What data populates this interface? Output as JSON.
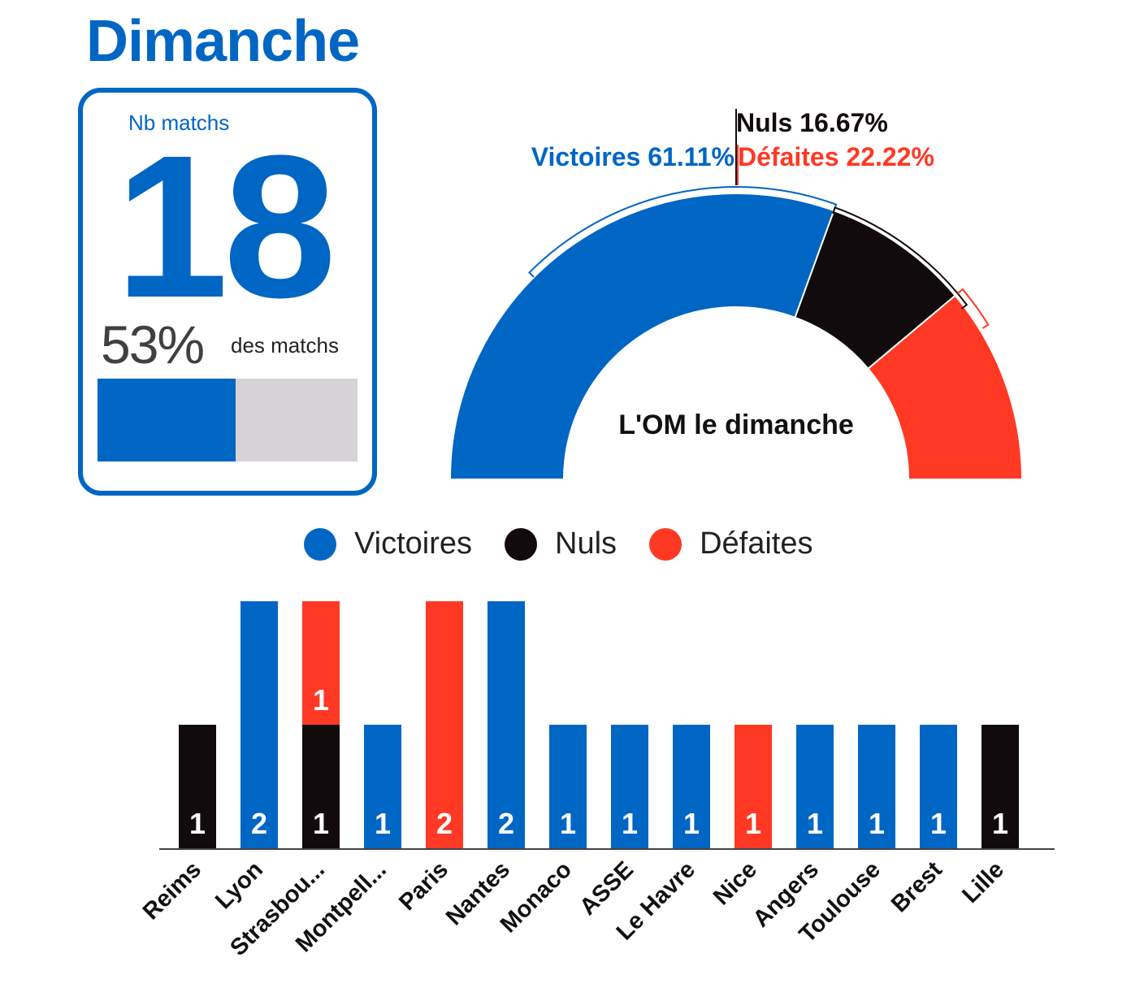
{
  "title": "Dimanche",
  "card": {
    "label": "Nb matchs",
    "number": "18",
    "pct_text": "53%",
    "pct_label": "des matchs",
    "pct_value": 0.53
  },
  "colors": {
    "brand": "#0066c4",
    "victoires": "#0066c4",
    "nuls": "#110b0d",
    "defaites": "#ff3924",
    "track": "#d5d3d6"
  },
  "chart_data": [
    {
      "type": "pie",
      "variant": "half-donut",
      "center_label": "L'OM le dimanche",
      "slices": [
        {
          "name": "Victoires",
          "value": 61.11,
          "label": "Victoires 61.11%"
        },
        {
          "name": "Nuls",
          "value": 16.67,
          "label": "Nuls 16.67%"
        },
        {
          "name": "Défaites",
          "value": 22.22,
          "label": "Défaites 22.22%"
        }
      ]
    },
    {
      "type": "bar",
      "stacked": true,
      "legend": [
        "Victoires",
        "Nuls",
        "Défaites"
      ],
      "legend_position": "top",
      "categories": [
        "Reims",
        "Lyon",
        "Strasbou...",
        "Montpell...",
        "Paris",
        "Nantes",
        "Monaco",
        "ASSE",
        "Le Havre",
        "Nice",
        "Angers",
        "Toulouse",
        "Brest",
        "Lille"
      ],
      "series": [
        {
          "name": "Victoires",
          "values": [
            0,
            2,
            0,
            1,
            0,
            2,
            1,
            1,
            1,
            0,
            1,
            1,
            1,
            0
          ]
        },
        {
          "name": "Nuls",
          "values": [
            1,
            0,
            1,
            0,
            0,
            0,
            0,
            0,
            0,
            0,
            0,
            0,
            0,
            1
          ]
        },
        {
          "name": "Défaites",
          "values": [
            0,
            0,
            1,
            0,
            2,
            0,
            0,
            0,
            0,
            1,
            0,
            0,
            0,
            0
          ]
        }
      ],
      "ylim": [
        0,
        2
      ],
      "xlabel": "",
      "ylabel": ""
    }
  ]
}
